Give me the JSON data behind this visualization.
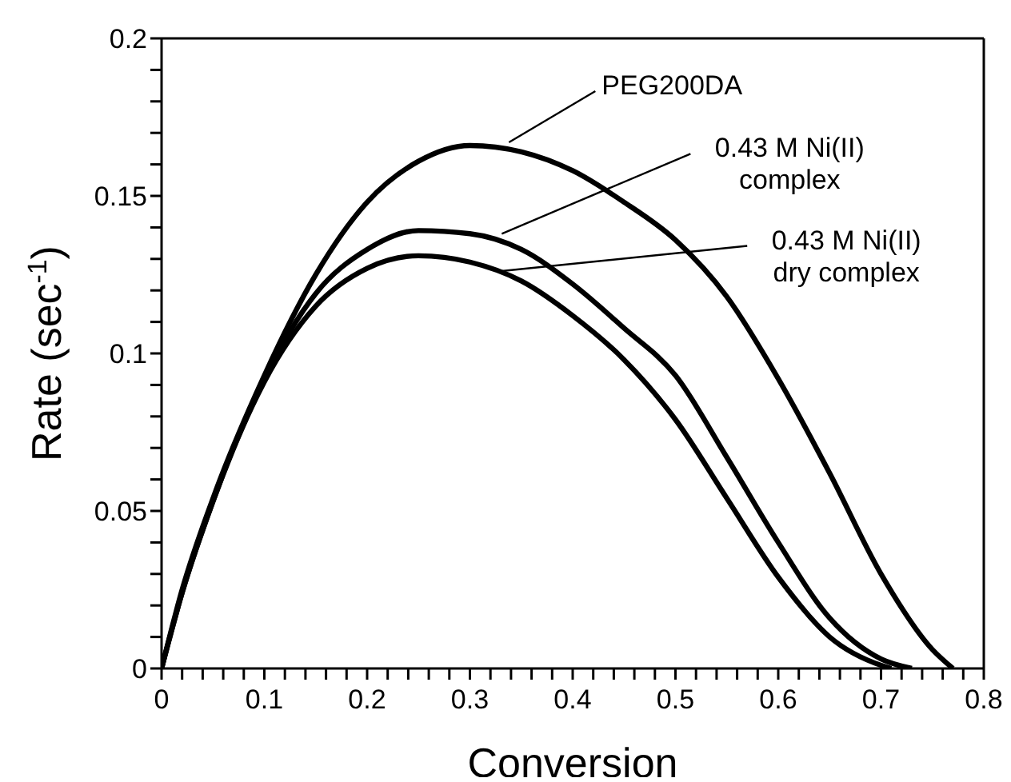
{
  "chart_data": {
    "type": "line",
    "xlabel": "Conversion",
    "ylabel": "Rate (sec$^{-1}$)",
    "xlim": [
      0,
      0.8
    ],
    "ylim": [
      0,
      0.2
    ],
    "xticks": [
      0,
      {
        "value": 0.02,
        "label": null
      },
      {
        "value": 0.04,
        "label": null
      },
      {
        "value": 0.06,
        "label": null
      },
      {
        "value": 0.08,
        "label": null
      },
      0.1,
      {
        "value": 0.12,
        "label": null
      },
      {
        "value": 0.14,
        "label": null
      },
      {
        "value": 0.16,
        "label": null
      },
      {
        "value": 0.18,
        "label": null
      },
      0.2,
      {
        "value": 0.22,
        "label": null
      },
      {
        "value": 0.24,
        "label": null
      },
      {
        "value": 0.26,
        "label": null
      },
      {
        "value": 0.28,
        "label": null
      },
      0.3,
      {
        "value": 0.32,
        "label": null
      },
      {
        "value": 0.34,
        "label": null
      },
      {
        "value": 0.36,
        "label": null
      },
      {
        "value": 0.38,
        "label": null
      },
      0.4,
      {
        "value": 0.42,
        "label": null
      },
      {
        "value": 0.44,
        "label": null
      },
      {
        "value": 0.46,
        "label": null
      },
      {
        "value": 0.48,
        "label": null
      },
      0.5,
      {
        "value": 0.52,
        "label": null
      },
      {
        "value": 0.54,
        "label": null
      },
      {
        "value": 0.56,
        "label": null
      },
      {
        "value": 0.58,
        "label": null
      },
      0.6,
      {
        "value": 0.62,
        "label": null
      },
      {
        "value": 0.64,
        "label": null
      },
      {
        "value": 0.66,
        "label": null
      },
      {
        "value": 0.68,
        "label": null
      },
      0.7,
      {
        "value": 0.72,
        "label": null
      },
      {
        "value": 0.74,
        "label": null
      },
      {
        "value": 0.76,
        "label": null
      },
      {
        "value": 0.78,
        "label": null
      },
      0.8
    ],
    "yticks": [
      0,
      {
        "value": 0.01,
        "label": null
      },
      {
        "value": 0.02,
        "label": null
      },
      {
        "value": 0.03,
        "label": null
      },
      {
        "value": 0.04,
        "label": null
      },
      0.05,
      {
        "value": 0.06,
        "label": null
      },
      {
        "value": 0.07,
        "label": null
      },
      {
        "value": 0.08,
        "label": null
      },
      {
        "value": 0.09,
        "label": null
      },
      0.1,
      {
        "value": 0.11,
        "label": null
      },
      {
        "value": 0.12,
        "label": null
      },
      {
        "value": 0.13,
        "label": null
      },
      {
        "value": 0.14,
        "label": null
      },
      0.15,
      {
        "value": 0.16,
        "label": null
      },
      {
        "value": 0.17,
        "label": null
      },
      {
        "value": 0.18,
        "label": null
      },
      {
        "value": 0.19,
        "label": null
      },
      0.2
    ],
    "marker": "none",
    "line_style": "solid",
    "series": [
      {
        "color": "#000000",
        "x": [
          0,
          0.02,
          0.05,
          0.1,
          0.15,
          0.2,
          0.25,
          0.3,
          0.35,
          0.4,
          0.45,
          0.5,
          0.55,
          0.6,
          0.65,
          0.7,
          0.75,
          0.77
        ],
        "values": [
          0,
          0.025,
          0.054,
          0.093,
          0.125,
          0.148,
          0.161,
          0.166,
          0.164,
          0.158,
          0.148,
          0.136,
          0.118,
          0.092,
          0.062,
          0.03,
          0.006,
          0
        ]
      },
      {
        "color": "#000000",
        "x": [
          0,
          0.02,
          0.05,
          0.1,
          0.15,
          0.2,
          0.25,
          0.3,
          0.35,
          0.4,
          0.45,
          0.5,
          0.55,
          0.6,
          0.65,
          0.7,
          0.73
        ],
        "values": [
          0,
          0.024,
          0.053,
          0.092,
          0.119,
          0.133,
          0.139,
          0.138,
          0.133,
          0.122,
          0.108,
          0.093,
          0.067,
          0.04,
          0.016,
          0.003,
          0
        ]
      },
      {
        "color": "#000000",
        "x": [
          0,
          0.02,
          0.05,
          0.1,
          0.15,
          0.2,
          0.25,
          0.3,
          0.35,
          0.4,
          0.45,
          0.5,
          0.55,
          0.6,
          0.65,
          0.7,
          0.71
        ],
        "values": [
          0,
          0.024,
          0.053,
          0.091,
          0.115,
          0.127,
          0.131,
          0.129,
          0.123,
          0.112,
          0.098,
          0.079,
          0.054,
          0.029,
          0.01,
          0.001,
          0
        ]
      }
    ],
    "annotations": [
      {
        "text": "PEG200DA",
        "x": 0.338,
        "y": 0.167
      },
      {
        "text": "0.43 M Ni(II)\ncomplex",
        "x": 0.331,
        "y": 0.138
      },
      {
        "text": "0.43 M Ni(II)\ndry complex",
        "x": 0.327,
        "y": 0.126
      }
    ]
  }
}
